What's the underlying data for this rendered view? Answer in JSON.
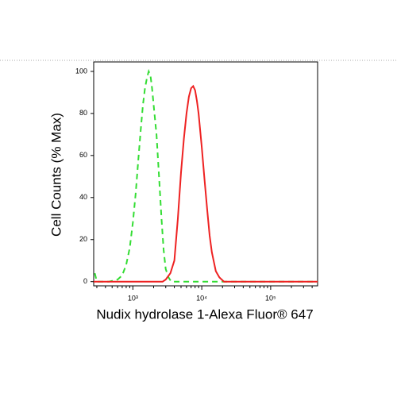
{
  "chart_data": {
    "type": "line",
    "log_x": true,
    "xlabel": "Nudix hydrolase 1-Alexa Fluor® 647",
    "ylabel": "Cell Counts (% Max)",
    "xlim": [
      270,
      480000
    ],
    "ylim": [
      -2,
      104.5
    ],
    "xticks": [
      {
        "value": 1000,
        "label": "10³"
      },
      {
        "value": 10000,
        "label": "10⁴"
      },
      {
        "value": 100000,
        "label": "10⁵"
      }
    ],
    "xminorticks": [
      300,
      400,
      500,
      600,
      700,
      800,
      900,
      2000,
      3000,
      4000,
      5000,
      6000,
      7000,
      8000,
      9000,
      20000,
      30000,
      40000,
      50000,
      60000,
      70000,
      80000,
      90000,
      200000,
      300000,
      400000
    ],
    "yticks": [
      0,
      20,
      40,
      60,
      80,
      100
    ],
    "series": [
      {
        "color": "#33dd33",
        "dashed": true,
        "x": [
          280,
          300,
          450,
          600,
          700,
          800,
          900,
          1000,
          1100,
          1200,
          1300,
          1400,
          1500,
          1600,
          1700,
          1800,
          1900,
          2000,
          2200,
          2400,
          2600,
          2800,
          3000,
          3300,
          3600,
          10000,
          480000
        ],
        "values": [
          4,
          0,
          0,
          1,
          3,
          8,
          16,
          28,
          42,
          58,
          72,
          84,
          92,
          97,
          100,
          98,
          92,
          84,
          70,
          50,
          30,
          15,
          6,
          2,
          0,
          0,
          0
        ]
      },
      {
        "color": "#ee2222",
        "dashed": false,
        "x": [
          270,
          2700,
          3000,
          3500,
          4000,
          4500,
          5000,
          5500,
          6000,
          6500,
          7000,
          7500,
          8000,
          8500,
          9000,
          10000,
          11000,
          12000,
          13000,
          14000,
          16000,
          18000,
          21000,
          480000
        ],
        "values": [
          0,
          0,
          1,
          4,
          10,
          30,
          52,
          68,
          80,
          88,
          92,
          93,
          91,
          86,
          80,
          64,
          48,
          34,
          22,
          14,
          5,
          2,
          0,
          0
        ]
      }
    ]
  }
}
